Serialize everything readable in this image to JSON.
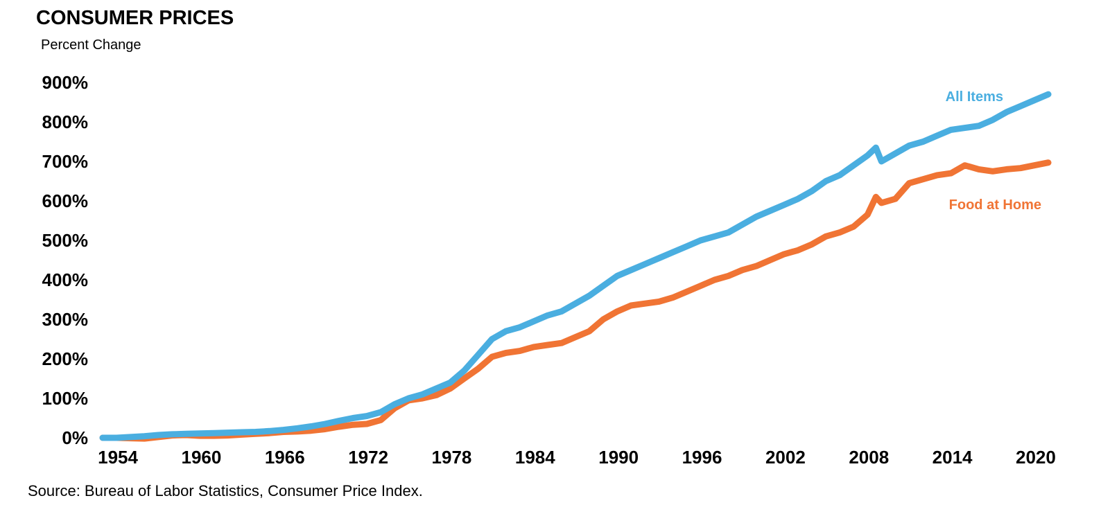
{
  "chart_data": {
    "type": "line",
    "title": "CONSUMER PRICES",
    "subtitle": "Percent Change",
    "source": "Source: Bureau of Labor Statistics, Consumer Price Index.",
    "ylim": [
      0,
      900
    ],
    "xlim": [
      1953,
      2021
    ],
    "y_ticks": [
      0,
      100,
      200,
      300,
      400,
      500,
      600,
      700,
      800,
      900
    ],
    "y_tick_labels": [
      "0%",
      "100%",
      "200%",
      "300%",
      "400%",
      "500%",
      "600%",
      "700%",
      "800%",
      "900%"
    ],
    "x_ticks": [
      1954,
      1960,
      1966,
      1972,
      1978,
      1984,
      1990,
      1996,
      2002,
      2008,
      2014,
      2020
    ],
    "x_tick_labels": [
      "1954",
      "1960",
      "1966",
      "1972",
      "1978",
      "1984",
      "1990",
      "1996",
      "2002",
      "2008",
      "2014",
      "2020"
    ],
    "grid": false,
    "legend": "inline labels at right",
    "series": [
      {
        "name": "All Items",
        "color": "#4aaee0",
        "x": [
          1953,
          1954,
          1955,
          1956,
          1957,
          1958,
          1959,
          1960,
          1961,
          1962,
          1963,
          1964,
          1965,
          1966,
          1967,
          1968,
          1969,
          1970,
          1971,
          1972,
          1973,
          1974,
          1975,
          1976,
          1977,
          1978,
          1979,
          1980,
          1981,
          1982,
          1983,
          1984,
          1985,
          1986,
          1987,
          1988,
          1989,
          1990,
          1991,
          1992,
          1993,
          1994,
          1995,
          1996,
          1997,
          1998,
          1999,
          2000,
          2001,
          2002,
          2003,
          2004,
          2005,
          2006,
          2007,
          2008,
          2008.6,
          2009,
          2010,
          2011,
          2012,
          2013,
          2014,
          2015,
          2016,
          2017,
          2018,
          2019,
          2020,
          2021
        ],
        "values": [
          0,
          0,
          2,
          4,
          7,
          9,
          10,
          11,
          12,
          13,
          14,
          15,
          17,
          20,
          24,
          29,
          35,
          43,
          50,
          55,
          65,
          85,
          100,
          110,
          125,
          140,
          170,
          210,
          250,
          270,
          280,
          295,
          310,
          320,
          340,
          360,
          385,
          410,
          425,
          440,
          455,
          470,
          485,
          500,
          510,
          520,
          540,
          560,
          575,
          590,
          605,
          625,
          650,
          665,
          690,
          715,
          735,
          700,
          720,
          740,
          750,
          765,
          780,
          785,
          790,
          805,
          825,
          840,
          855,
          870
        ]
      },
      {
        "name": "Food at Home",
        "color": "#f07434",
        "x": [
          1953,
          1954,
          1955,
          1956,
          1957,
          1958,
          1959,
          1960,
          1961,
          1962,
          1963,
          1964,
          1965,
          1966,
          1967,
          1968,
          1969,
          1970,
          1971,
          1972,
          1973,
          1974,
          1975,
          1976,
          1977,
          1978,
          1979,
          1980,
          1981,
          1982,
          1983,
          1984,
          1985,
          1986,
          1987,
          1988,
          1989,
          1990,
          1991,
          1992,
          1993,
          1994,
          1995,
          1996,
          1997,
          1998,
          1999,
          2000,
          2001,
          2002,
          2003,
          2004,
          2005,
          2006,
          2007,
          2008,
          2008.6,
          2009,
          2010,
          2011,
          2012,
          2013,
          2014,
          2015,
          2016,
          2017,
          2018,
          2019,
          2020,
          2021
        ],
        "values": [
          0,
          0,
          -1,
          -2,
          2,
          6,
          7,
          5,
          5,
          6,
          8,
          10,
          12,
          15,
          16,
          18,
          22,
          28,
          33,
          35,
          45,
          75,
          95,
          100,
          108,
          125,
          150,
          175,
          205,
          215,
          220,
          230,
          235,
          240,
          255,
          270,
          300,
          320,
          335,
          340,
          345,
          355,
          370,
          385,
          400,
          410,
          425,
          435,
          450,
          465,
          475,
          490,
          510,
          520,
          535,
          565,
          610,
          595,
          605,
          645,
          655,
          665,
          670,
          690,
          680,
          675,
          680,
          683,
          690,
          697
        ]
      }
    ]
  }
}
